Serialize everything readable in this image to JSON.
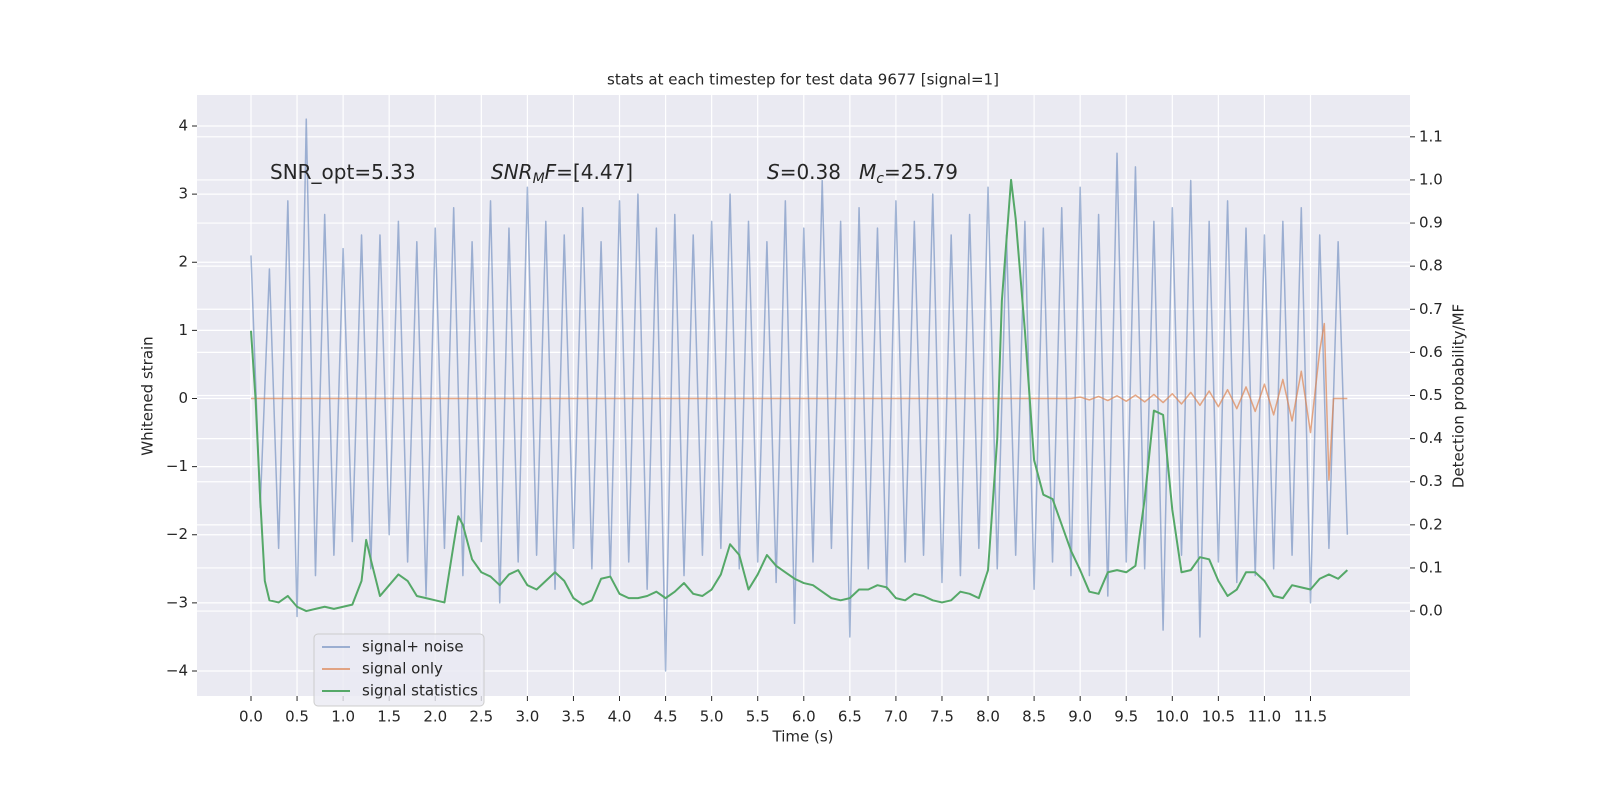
{
  "chart_data": {
    "type": "line",
    "title": "stats at each timestep for test data 9677 [signal=1]",
    "xlabel": "Time (s)",
    "ylabel": "Whitened strain",
    "y2label": "Detection probability/MF",
    "xlim": [
      -0.586,
      12.58
    ],
    "ylim": [
      -4.367,
      4.455
    ],
    "y2lim": [
      -0.197,
      1.197
    ],
    "xticks": [
      {
        "value": 0,
        "label": "0.0"
      },
      0.5,
      {
        "value": 1,
        "label": "1.0"
      },
      1.5,
      {
        "value": 2,
        "label": "2.0"
      },
      2.5,
      {
        "value": 3,
        "label": "3.0"
      },
      3.5,
      {
        "value": 4,
        "label": "4.0"
      },
      4.5,
      {
        "value": 5,
        "label": "5.0"
      },
      5.5,
      {
        "value": 6,
        "label": "6.0"
      },
      6.5,
      {
        "value": 7,
        "label": "7.0"
      },
      7.5,
      {
        "value": 8,
        "label": "8.0"
      },
      8.5,
      {
        "value": 9,
        "label": "9.0"
      },
      9.5,
      {
        "value": 10,
        "label": "10.0"
      },
      10.5,
      {
        "value": 11,
        "label": "11.0"
      },
      11.5
    ],
    "yticks": [
      {
        "value": -4,
        "label": "−4"
      },
      {
        "value": -3,
        "label": "−3"
      },
      {
        "value": -2,
        "label": "−2"
      },
      {
        "value": -1,
        "label": "−1"
      },
      0,
      1,
      2,
      3,
      4
    ],
    "y2ticks": [
      {
        "value": 0,
        "label": "0.0"
      },
      0.1,
      0.2,
      0.3,
      0.4,
      0.5,
      0.6,
      0.7,
      0.8,
      0.9,
      {
        "value": 1,
        "label": "1.0"
      },
      1.1
    ],
    "grid": true,
    "legend": "lower left",
    "annotations": [
      {
        "parts": [
          {
            "text": "SNR_opt=5.33"
          }
        ]
      },
      {
        "parts": [
          {
            "text": "SNR",
            "italic": true
          },
          {
            "text": "M",
            "italic": true,
            "sub": true
          },
          {
            "text": "F",
            "italic": true
          },
          {
            "text": "=[4.47]"
          }
        ]
      },
      {
        "parts": [
          {
            "text": "S",
            "italic": true
          },
          {
            "text": "=0.38"
          }
        ]
      },
      {
        "parts": [
          {
            "text": "M",
            "italic": true
          },
          {
            "text": "c",
            "italic": true,
            "sub": true
          },
          {
            "text": "=25.79"
          }
        ]
      }
    ],
    "series": [
      {
        "name": "signal+ noise",
        "color": "#4c72b0",
        "opacity": 0.5,
        "x": [
          0,
          0.1,
          0.2,
          0.3,
          0.4,
          0.5,
          0.6,
          0.7,
          0.8,
          0.9,
          1,
          1.1,
          1.2,
          1.3,
          1.4,
          1.5,
          1.6,
          1.7,
          1.8,
          1.9,
          2,
          2.1,
          2.2,
          2.3,
          2.4,
          2.5,
          2.6,
          2.7,
          2.8,
          2.9,
          3,
          3.1,
          3.2,
          3.3,
          3.4,
          3.5,
          3.6,
          3.7,
          3.8,
          3.9,
          4,
          4.1,
          4.2,
          4.3,
          4.4,
          4.5,
          4.6,
          4.7,
          4.8,
          4.9,
          5,
          5.1,
          5.2,
          5.3,
          5.4,
          5.5,
          5.6,
          5.7,
          5.8,
          5.9,
          6,
          6.1,
          6.2,
          6.3,
          6.4,
          6.5,
          6.6,
          6.7,
          6.8,
          6.9,
          7,
          7.1,
          7.2,
          7.3,
          7.4,
          7.5,
          7.6,
          7.7,
          7.8,
          7.9,
          8,
          8.1,
          8.2,
          8.3,
          8.4,
          8.5,
          8.6,
          8.7,
          8.8,
          8.9,
          9,
          9.1,
          9.2,
          9.3,
          9.4,
          9.5,
          9.6,
          9.7,
          9.8,
          9.9,
          10,
          10.1,
          10.2,
          10.3,
          10.4,
          10.5,
          10.6,
          10.7,
          10.8,
          10.9,
          11,
          11.1,
          11.2,
          11.3,
          11.4,
          11.5,
          11.6,
          11.7,
          11.8,
          11.9
        ],
        "values": [
          2.1,
          -1.6,
          1.9,
          -2.2,
          2.9,
          -3.2,
          4.1,
          -2.6,
          2.7,
          -2.3,
          2.2,
          -2.1,
          2.4,
          -2.5,
          2.4,
          -2.0,
          2.6,
          -2.4,
          2.3,
          -2.9,
          2.5,
          -2.2,
          2.8,
          -2.6,
          2.3,
          -2.1,
          2.9,
          -3.0,
          2.5,
          -2.4,
          3.1,
          -2.3,
          2.6,
          -2.8,
          2.4,
          -2.2,
          2.8,
          -2.5,
          2.3,
          -2.6,
          2.9,
          -2.4,
          3.0,
          -2.8,
          2.5,
          -4.0,
          2.7,
          -2.6,
          2.4,
          -2.3,
          2.6,
          -2.2,
          3.0,
          -2.5,
          2.6,
          -2.4,
          2.3,
          -2.7,
          2.9,
          -3.3,
          2.5,
          -2.4,
          3.2,
          -2.2,
          2.6,
          -3.5,
          2.8,
          -2.5,
          2.5,
          -2.8,
          2.9,
          -2.4,
          2.6,
          -2.3,
          3.0,
          -2.7,
          2.4,
          -2.6,
          2.7,
          -2.2,
          3.1,
          -2.5,
          2.4,
          -2.3,
          2.6,
          -2.8,
          2.5,
          -2.4,
          2.8,
          -2.6,
          3.1,
          -2.6,
          2.7,
          -2.9,
          3.6,
          -2.4,
          3.4,
          -2.5,
          2.6,
          -3.4,
          2.8,
          -2.3,
          3.2,
          -3.5,
          2.6,
          -2.4,
          2.9,
          -2.7,
          2.5,
          -2.6,
          2.4,
          -2.5,
          2.6,
          -2.3,
          2.8,
          -3.0,
          2.4,
          -2.2,
          2.3,
          -2.0
        ]
      },
      {
        "name": "signal only",
        "color": "#dd8452",
        "opacity": 0.7,
        "x": [
          0,
          8.9,
          9,
          9.1,
          9.2,
          9.3,
          9.4,
          9.5,
          9.6,
          9.7,
          9.8,
          9.9,
          10,
          10.1,
          10.2,
          10.3,
          10.4,
          10.5,
          10.6,
          10.7,
          10.8,
          10.9,
          11,
          11.1,
          11.2,
          11.3,
          11.4,
          11.5,
          11.6,
          11.65,
          11.7,
          11.75,
          11.9
        ],
        "values": [
          0,
          0,
          0.02,
          -0.02,
          0.03,
          -0.03,
          0.04,
          -0.04,
          0.05,
          -0.05,
          0.06,
          -0.06,
          0.07,
          -0.08,
          0.09,
          -0.1,
          0.11,
          -0.12,
          0.13,
          -0.15,
          0.17,
          -0.19,
          0.21,
          -0.24,
          0.28,
          -0.33,
          0.4,
          -0.5,
          0.7,
          1.1,
          -1.2,
          0,
          0
        ]
      },
      {
        "name": "signal statistics",
        "color": "#55a868",
        "opacity": 1,
        "axis": "y2",
        "x": [
          0,
          0.05,
          0.1,
          0.15,
          0.2,
          0.3,
          0.4,
          0.5,
          0.6,
          0.7,
          0.8,
          0.9,
          1,
          1.1,
          1.2,
          1.25,
          1.3,
          1.4,
          1.5,
          1.6,
          1.7,
          1.8,
          1.9,
          2,
          2.1,
          2.2,
          2.25,
          2.3,
          2.4,
          2.5,
          2.6,
          2.7,
          2.8,
          2.9,
          3,
          3.1,
          3.2,
          3.3,
          3.4,
          3.5,
          3.6,
          3.7,
          3.8,
          3.9,
          4,
          4.1,
          4.2,
          4.3,
          4.4,
          4.5,
          4.6,
          4.7,
          4.8,
          4.9,
          5,
          5.1,
          5.2,
          5.3,
          5.4,
          5.5,
          5.6,
          5.7,
          5.8,
          5.9,
          6,
          6.1,
          6.2,
          6.3,
          6.4,
          6.5,
          6.6,
          6.7,
          6.8,
          6.9,
          7,
          7.1,
          7.2,
          7.3,
          7.4,
          7.5,
          7.6,
          7.7,
          7.8,
          7.9,
          8,
          8.1,
          8.15,
          8.25,
          8.3,
          8.4,
          8.5,
          8.6,
          8.7,
          8.8,
          8.9,
          9,
          9.1,
          9.2,
          9.3,
          9.4,
          9.5,
          9.6,
          9.7,
          9.8,
          9.9,
          10,
          10.1,
          10.2,
          10.3,
          10.4,
          10.5,
          10.6,
          10.7,
          10.8,
          10.9,
          11,
          11.1,
          11.2,
          11.3,
          11.4,
          11.5,
          11.6,
          11.7,
          11.8,
          11.9
        ],
        "values": [
          0.65,
          0.49,
          0.26,
          0.07,
          0.025,
          0.02,
          0.035,
          0.01,
          0,
          0.005,
          0.01,
          0.005,
          0.01,
          0.015,
          0.07,
          0.165,
          0.12,
          0.035,
          0.06,
          0.085,
          0.07,
          0.035,
          0.03,
          0.025,
          0.02,
          0.155,
          0.22,
          0.2,
          0.12,
          0.09,
          0.08,
          0.06,
          0.085,
          0.095,
          0.06,
          0.05,
          0.07,
          0.09,
          0.07,
          0.03,
          0.015,
          0.025,
          0.075,
          0.08,
          0.04,
          0.03,
          0.03,
          0.035,
          0.045,
          0.03,
          0.045,
          0.065,
          0.04,
          0.035,
          0.05,
          0.085,
          0.155,
          0.13,
          0.05,
          0.085,
          0.13,
          0.105,
          0.09,
          0.075,
          0.065,
          0.06,
          0.045,
          0.03,
          0.025,
          0.03,
          0.05,
          0.05,
          0.06,
          0.055,
          0.03,
          0.025,
          0.04,
          0.035,
          0.025,
          0.02,
          0.025,
          0.045,
          0.04,
          0.03,
          0.095,
          0.4,
          0.72,
          1.0,
          0.91,
          0.65,
          0.35,
          0.27,
          0.26,
          0.2,
          0.14,
          0.095,
          0.045,
          0.04,
          0.09,
          0.095,
          0.09,
          0.105,
          0.26,
          0.465,
          0.455,
          0.235,
          0.09,
          0.095,
          0.125,
          0.12,
          0.07,
          0.035,
          0.05,
          0.09,
          0.09,
          0.07,
          0.035,
          0.03,
          0.06,
          0.055,
          0.05,
          0.075,
          0.085,
          0.075,
          0.095
        ]
      }
    ]
  }
}
